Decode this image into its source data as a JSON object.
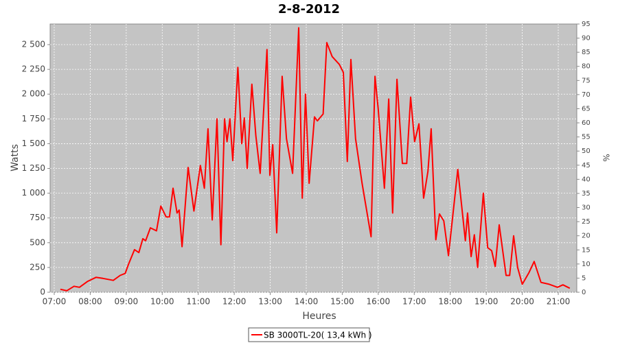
{
  "chart_data": {
    "type": "line",
    "title": "2-8-2012",
    "x_label": "Heures",
    "y_label": "Watts",
    "y2_label": "%",
    "x": [
      7.17,
      7.35,
      7.55,
      7.7,
      7.93,
      8.16,
      8.35,
      8.64,
      8.83,
      8.97,
      9.06,
      9.23,
      9.35,
      9.46,
      9.54,
      9.67,
      9.84,
      9.96,
      10.11,
      10.2,
      10.3,
      10.41,
      10.47,
      10.55,
      10.72,
      10.88,
      11.06,
      11.17,
      11.27,
      11.39,
      11.52,
      11.63,
      11.73,
      11.8,
      11.88,
      11.96,
      12.1,
      12.21,
      12.28,
      12.36,
      12.49,
      12.6,
      12.72,
      12.91,
      12.99,
      13.07,
      13.18,
      13.33,
      13.45,
      13.62,
      13.79,
      13.89,
      13.98,
      14.08,
      14.23,
      14.31,
      14.47,
      14.57,
      14.72,
      14.92,
      15.03,
      15.14,
      15.24,
      15.37,
      15.55,
      15.8,
      15.91,
      16.0,
      16.17,
      16.29,
      16.4,
      16.52,
      16.67,
      16.79,
      16.9,
      17.01,
      17.13,
      17.26,
      17.38,
      17.47,
      17.6,
      17.7,
      17.82,
      17.95,
      18.21,
      18.42,
      18.48,
      18.58,
      18.67,
      18.76,
      18.92,
      19.04,
      19.15,
      19.25,
      19.36,
      19.55,
      19.65,
      19.76,
      19.87,
      20.0,
      20.19,
      20.33,
      20.52,
      20.75,
      20.98,
      21.13,
      21.32
    ],
    "series": [
      {
        "name": "SB 3000TL-20( 13,4 kWh )",
        "color": "#ff0000",
        "values": [
          30,
          15,
          60,
          50,
          110,
          150,
          140,
          120,
          170,
          190,
          280,
          430,
          400,
          540,
          520,
          650,
          620,
          870,
          760,
          760,
          1050,
          800,
          830,
          460,
          1260,
          820,
          1280,
          1050,
          1650,
          730,
          1750,
          480,
          1750,
          1520,
          1750,
          1330,
          2270,
          1500,
          1760,
          1250,
          2100,
          1580,
          1200,
          2450,
          1180,
          1490,
          600,
          2180,
          1550,
          1200,
          2670,
          950,
          2000,
          1100,
          1770,
          1730,
          1800,
          2520,
          2380,
          2300,
          2220,
          1320,
          2350,
          1550,
          1100,
          560,
          2180,
          1850,
          1050,
          1950,
          800,
          2150,
          1300,
          1300,
          1970,
          1520,
          1700,
          950,
          1220,
          1650,
          530,
          790,
          720,
          370,
          1240,
          520,
          800,
          360,
          580,
          250,
          1000,
          450,
          420,
          260,
          680,
          170,
          170,
          570,
          250,
          80,
          200,
          310,
          100,
          80,
          50,
          75,
          40
        ]
      }
    ],
    "xlim": [
      6.886,
      21.515
    ],
    "xticks": [
      {
        "value": 7,
        "label": "07:00"
      },
      {
        "value": 8,
        "label": "08:00"
      },
      {
        "value": 9,
        "label": "09:00"
      },
      {
        "value": 10,
        "label": "10:00"
      },
      {
        "value": 11,
        "label": "11:00"
      },
      {
        "value": 12,
        "label": "12:00"
      },
      {
        "value": 13,
        "label": "13:00"
      },
      {
        "value": 14,
        "label": "14:00"
      },
      {
        "value": 15,
        "label": "15:00"
      },
      {
        "value": 16,
        "label": "16:00"
      },
      {
        "value": 17,
        "label": "17:00"
      },
      {
        "value": 18,
        "label": "18:00"
      },
      {
        "value": 19,
        "label": "19:00"
      },
      {
        "value": 20,
        "label": "20:00"
      },
      {
        "value": 21,
        "label": "21:00"
      }
    ],
    "ylim": [
      0,
      2708
    ],
    "yticks": [
      0,
      250,
      500,
      750,
      {
        "value": 1000,
        "label": "1 000"
      },
      {
        "value": 1250,
        "label": "1 250"
      },
      {
        "value": 1500,
        "label": "1 500"
      },
      {
        "value": 1750,
        "label": "1 750"
      },
      {
        "value": 2000,
        "label": "2 000"
      },
      {
        "value": 2250,
        "label": "2 250"
      },
      {
        "value": 2500,
        "label": "2 500"
      }
    ],
    "y2lim": [
      0,
      95
    ],
    "y2ticks": [
      0,
      5,
      10,
      15,
      20,
      25,
      30,
      35,
      40,
      45,
      50,
      55,
      60,
      65,
      70,
      75,
      80,
      85,
      90,
      95
    ],
    "grid": true,
    "legend": "bottom"
  }
}
